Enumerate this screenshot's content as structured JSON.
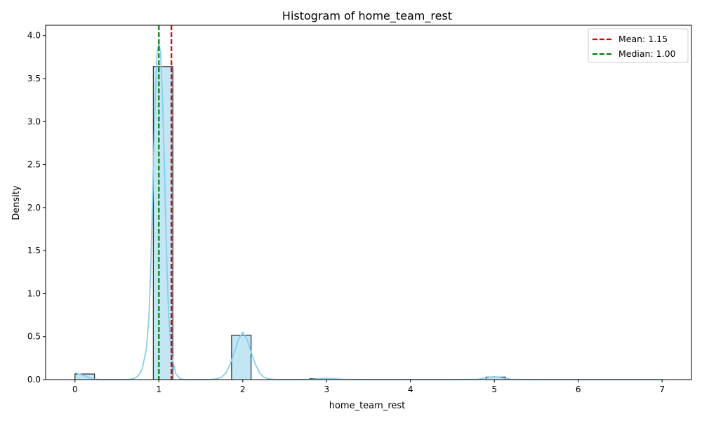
{
  "chart_data": {
    "type": "histogram",
    "title": "Histogram of home_team_rest",
    "xlabel": "home_team_rest",
    "ylabel": "Density",
    "xlim": [
      -0.35,
      7.35
    ],
    "ylim": [
      0,
      4.12
    ],
    "x_ticks": [
      0,
      1,
      2,
      3,
      4,
      5,
      6,
      7
    ],
    "x_tick_labels": [
      "0",
      "1",
      "2",
      "3",
      "4",
      "5",
      "6",
      "7"
    ],
    "y_ticks": [
      0,
      0.5,
      1.0,
      1.5,
      2.0,
      2.5,
      3.0,
      3.5,
      4.0
    ],
    "y_tick_labels": [
      "0.0",
      "0.5",
      "1.0",
      "1.5",
      "2.0",
      "2.5",
      "3.0",
      "3.5",
      "4.0"
    ],
    "bin_width": 0.2333,
    "bins": [
      {
        "x_start": 0.0,
        "x_end": 0.2333,
        "density": 0.065
      },
      {
        "x_start": 0.9333,
        "x_end": 1.1667,
        "density": 3.64
      },
      {
        "x_start": 1.8667,
        "x_end": 2.1,
        "density": 0.515
      },
      {
        "x_start": 2.8,
        "x_end": 3.0333,
        "density": 0.012
      },
      {
        "x_start": 4.9,
        "x_end": 5.1333,
        "density": 0.03
      }
    ],
    "kde": {
      "x": [
        0,
        0.1,
        0.2,
        0.3,
        0.4,
        0.5,
        0.6,
        0.7,
        0.75,
        0.8,
        0.85,
        0.88,
        0.9,
        0.92,
        0.94,
        0.96,
        0.98,
        1.0,
        1.02,
        1.04,
        1.06,
        1.08,
        1.1,
        1.12,
        1.15,
        1.2,
        1.25,
        1.3,
        1.4,
        1.5,
        1.6,
        1.7,
        1.75,
        1.8,
        1.85,
        1.9,
        1.95,
        2.0,
        2.05,
        2.1,
        2.15,
        2.2,
        2.25,
        2.3,
        2.4,
        2.6,
        2.8,
        2.9,
        3.0,
        3.1,
        3.2,
        3.5,
        4.0,
        4.5,
        4.8,
        4.9,
        5.0,
        5.1,
        5.2,
        5.5,
        6.0,
        6.5,
        7.0
      ],
      "y": [
        0.08,
        0.05,
        0.01,
        0.0,
        0.0,
        0.0,
        0.0,
        0.01,
        0.04,
        0.12,
        0.35,
        0.7,
        1.2,
        1.9,
        2.7,
        3.35,
        3.8,
        3.92,
        3.8,
        3.35,
        2.7,
        1.9,
        1.2,
        0.7,
        0.3,
        0.07,
        0.01,
        0.0,
        0.0,
        0.0,
        0.0,
        0.01,
        0.03,
        0.08,
        0.18,
        0.32,
        0.47,
        0.55,
        0.47,
        0.32,
        0.18,
        0.08,
        0.03,
        0.01,
        0.0,
        0.0,
        0.003,
        0.01,
        0.015,
        0.01,
        0.003,
        0.0,
        0.0,
        0.0,
        0.003,
        0.02,
        0.035,
        0.02,
        0.003,
        0.0,
        0.0,
        0.0,
        0.0
      ]
    },
    "reference_lines": [
      {
        "name": "Mean",
        "value": 1.15,
        "label": "Mean: 1.15",
        "color": "#e00000"
      },
      {
        "name": "Median",
        "value": 1.0,
        "label": "Median: 1.00",
        "color": "#008000"
      }
    ],
    "legend_position": "top-right",
    "bar_fill": "#c3e6f5",
    "bar_edge": "#000000",
    "kde_color": "#87ceeb"
  }
}
